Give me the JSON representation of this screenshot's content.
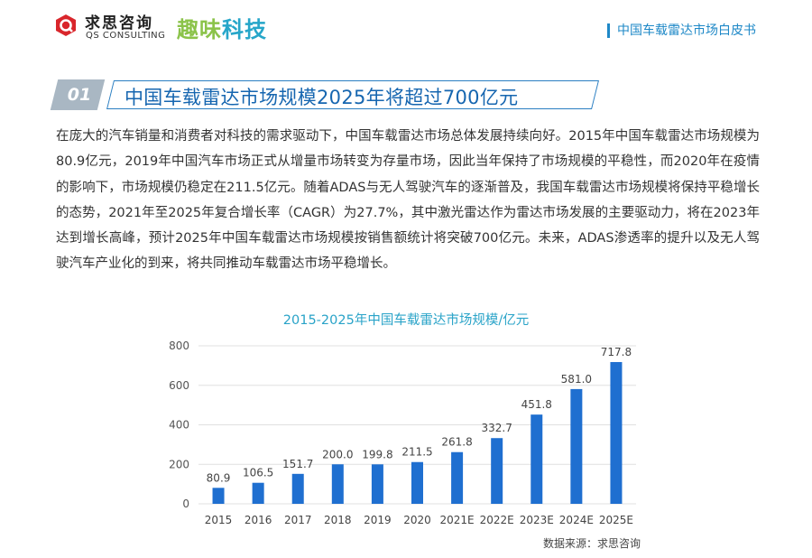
{
  "header": {
    "brand_cn": "求思咨询",
    "brand_en": "QS CONSULTING",
    "partner_part1": "趣味",
    "partner_part2": "科技",
    "doc_title": "中国车载雷达市场白皮书"
  },
  "section": {
    "number": "01",
    "title": "中国车载雷达市场规模2025年将超过700亿元"
  },
  "paragraph": "在庞大的汽车销量和消费者对科技的需求驱动下，中国车载雷达市场总体发展持续向好。2015年中国车载雷达市场规模为80.9亿元，2019年中国汽车市场正式从增量市场转变为存量市场，因此当年保持了市场规模的平稳性，而2020年在疫情的影响下，市场规模仍稳定在211.5亿元。随着ADAS与无人驾驶汽车的逐渐普及，我国车载雷达市场规模将保持平稳增长的态势，2021年至2025年复合增长率（CAGR）为27.7%，其中激光雷达作为雷达市场发展的主要驱动力，将在2023年达到增长高峰，预计2025年中国车载雷达市场规模按销售额统计将突破700亿元。未来，ADAS渗透率的提升以及无人驾驶汽车产业化的到来，将共同推动车载雷达市场平稳增长。",
  "chart_data": {
    "type": "bar",
    "title": "2015-2025年中国车载雷达市场规模/亿元",
    "categories": [
      "2015",
      "2016",
      "2017",
      "2018",
      "2019",
      "2020",
      "2021E",
      "2022E",
      "2023E",
      "2024E",
      "2025E"
    ],
    "values": [
      80.9,
      106.5,
      151.7,
      200.0,
      199.8,
      211.5,
      261.8,
      332.7,
      451.8,
      581.0,
      717.8
    ],
    "value_labels": [
      "80.9",
      "106.5",
      "151.7",
      "200.0",
      "199.8",
      "211.5",
      "261.8",
      "332.7",
      "451.8",
      "581.0",
      "717.8"
    ],
    "yticks": [
      "0",
      "200",
      "400",
      "600",
      "800"
    ],
    "ylim": [
      0,
      800
    ],
    "xlabel": "",
    "ylabel": "",
    "bar_color": "#1f6fd0",
    "grid": true
  },
  "source": "数据来源：求思咨询"
}
